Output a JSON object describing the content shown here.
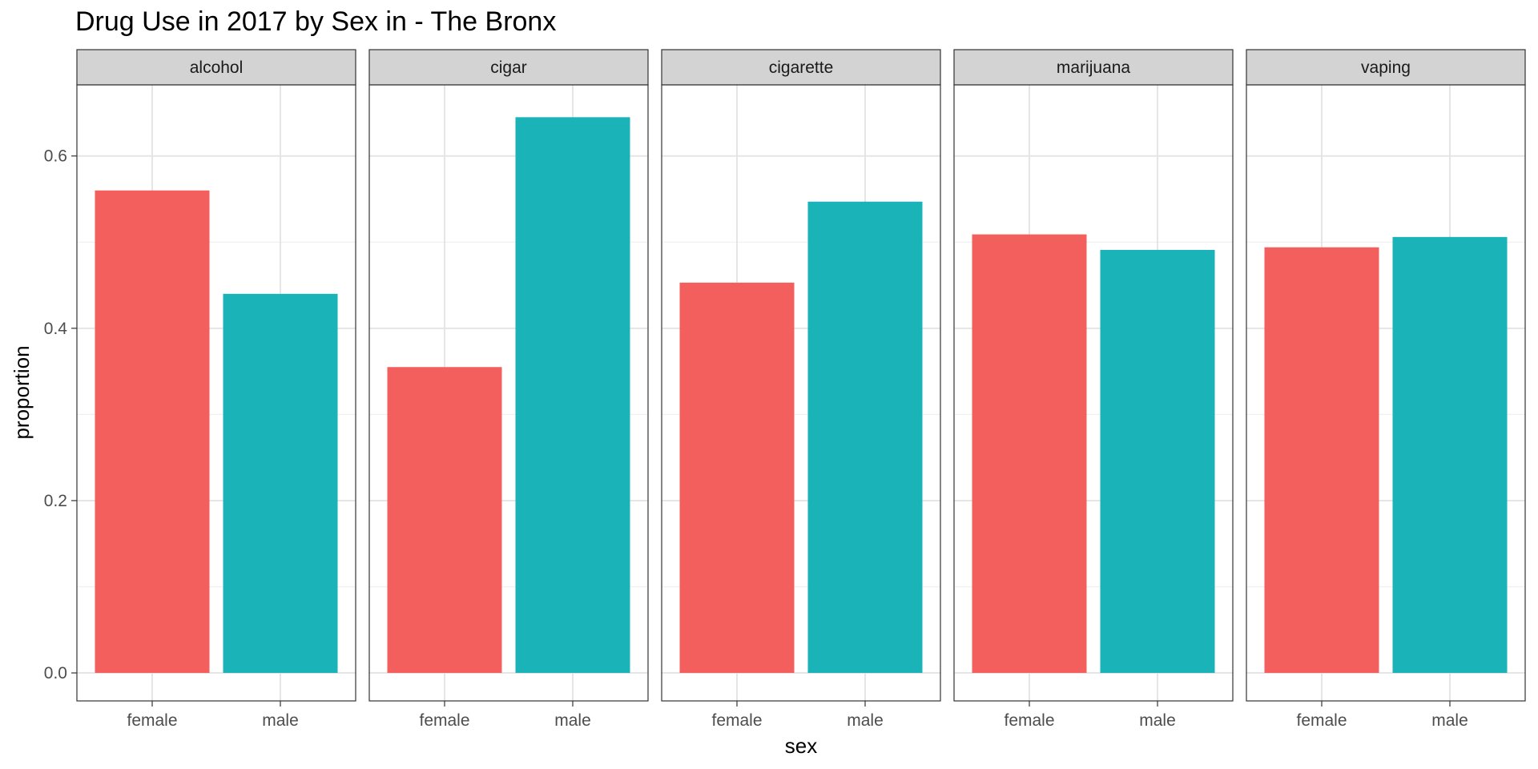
{
  "chart_data": {
    "type": "bar",
    "title": "Drug Use in 2017 by Sex in  - The Bronx",
    "xlabel": "sex",
    "ylabel": "proportion",
    "ylim": [
      -0.0325,
      0.6825
    ],
    "yticks": [
      "0.0",
      "0.2",
      "0.4",
      "0.6"
    ],
    "ytick_values": [
      0,
      0.2,
      0.4,
      0.6
    ],
    "grid": true,
    "legend": "none",
    "categories": [
      "female",
      "male"
    ],
    "colors": {
      "female": "#F25F5C",
      "male": "#1AB3B7"
    },
    "facets": [
      {
        "name": "alcohol",
        "values": [
          0.56,
          0.44
        ]
      },
      {
        "name": "cigar",
        "values": [
          0.355,
          0.645
        ]
      },
      {
        "name": "cigarette",
        "values": [
          0.453,
          0.547
        ]
      },
      {
        "name": "marijuana",
        "values": [
          0.509,
          0.491
        ]
      },
      {
        "name": "vaping",
        "values": [
          0.494,
          0.506
        ]
      }
    ]
  }
}
